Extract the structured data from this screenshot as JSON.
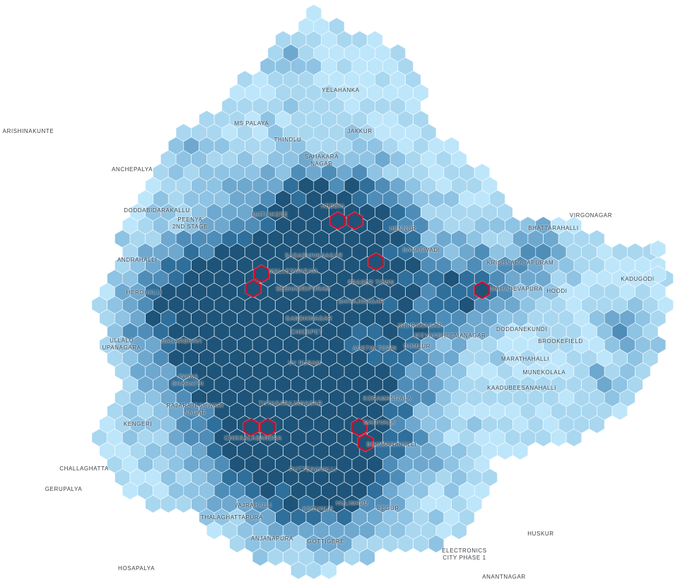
{
  "map": {
    "colors": {
      "background": "#ffffff",
      "scale": [
        "#bde6fb",
        "#a9d7f0",
        "#8ec3e3",
        "#6ea8cf",
        "#4f8db9",
        "#2f6f9b",
        "#1e5479"
      ],
      "selected_outline": "#c8102e"
    },
    "places": [
      {
        "name": "YELAHANKA"
      },
      {
        "name": "ARISHINAKUNTE"
      },
      {
        "name": "MS PALAYA"
      },
      {
        "name": "THINDLU"
      },
      {
        "name": "JAKKUR"
      },
      {
        "name": "SAHAKARA\nNAGAR"
      },
      {
        "name": "ANCHEPALYA"
      },
      {
        "name": "DODDABIDARAKALLU"
      },
      {
        "name": "PEENYA\n2ND STAGE"
      },
      {
        "name": "MATHIKERE"
      },
      {
        "name": "HEBBAL"
      },
      {
        "name": "HENNUR"
      },
      {
        "name": "VIRGONAGAR"
      },
      {
        "name": "BHATTARAHALLI"
      },
      {
        "name": "BANASWADI"
      },
      {
        "name": "SADASHIVANAGAR"
      },
      {
        "name": "KRISHNARAJAPURAM"
      },
      {
        "name": "ANDRAHALLI"
      },
      {
        "name": "MALLESWARAM"
      },
      {
        "name": "FRASER TOWN"
      },
      {
        "name": "KADUGODI"
      },
      {
        "name": "SESHADRIPURAM"
      },
      {
        "name": "MAHADEVAPURA"
      },
      {
        "name": "HOODI"
      },
      {
        "name": "HEROHALLI"
      },
      {
        "name": "SHIVAJINAGAR"
      },
      {
        "name": "GANDHINAGAR"
      },
      {
        "name": "INDIRANAGAR"
      },
      {
        "name": "DODDANEKUNDI"
      },
      {
        "name": "CHICKPET"
      },
      {
        "name": "JEEVANBHEEMANAGAR"
      },
      {
        "name": "NAGARBHAVI"
      },
      {
        "name": "BROOKEFIELD"
      },
      {
        "name": "ULLALU\nUPANAGARA"
      },
      {
        "name": "DOMLUR"
      },
      {
        "name": "AUSTIN TOWN"
      },
      {
        "name": "MARATHAHALLI"
      },
      {
        "name": "VV PURAM"
      },
      {
        "name": "MUNEKOLALA"
      },
      {
        "name": "JNANA\nBHARATHI"
      },
      {
        "name": "KAADUBEESANAHALLI"
      },
      {
        "name": "KORAMANGALA"
      },
      {
        "name": "THYAGARAJANAGAR"
      },
      {
        "name": "RAJARAJESHWARI\nNAGAR"
      },
      {
        "name": "MADIVALA"
      },
      {
        "name": "KENGERI"
      },
      {
        "name": "CHIKKALASANDRA"
      },
      {
        "name": "BOMMANAHALLI"
      },
      {
        "name": "CHALLAGHATTA"
      },
      {
        "name": "PUTTENAHALLI"
      },
      {
        "name": "GERUPALYA"
      },
      {
        "name": "VAJRAHALLI"
      },
      {
        "name": "HULIMAVU"
      },
      {
        "name": "KOTHNUR"
      },
      {
        "name": "BEGUR"
      },
      {
        "name": "THALAGHATTAPURA"
      },
      {
        "name": "HUSKUR"
      },
      {
        "name": "ANJANAPURA"
      },
      {
        "name": "GOTTIGERE"
      },
      {
        "name": "ELECTRONICS\nCITY PHASE 1"
      },
      {
        "name": "HOSAPALYA"
      },
      {
        "name": "ANANTNAGAR"
      }
    ]
  }
}
